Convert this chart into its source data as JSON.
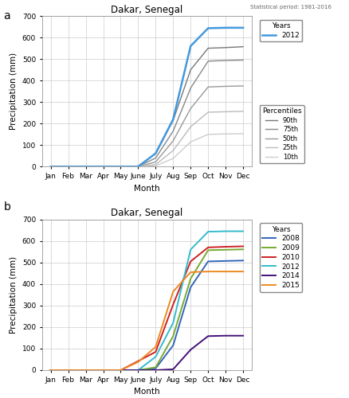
{
  "title": "Dakar, Senegal",
  "xlabel": "Month",
  "ylabel": "Precipitation (mm)",
  "stat_period_text": "Statistical period: 1981-2016",
  "ylim": [
    0,
    700
  ],
  "month_labels": [
    "Jan",
    "Feb",
    "Mar",
    "Apr",
    "May",
    "June",
    "July",
    "Aug",
    "Sep",
    "Oct",
    "Nov",
    "Dec"
  ],
  "percentile_colors": {
    "90th": "#777777",
    "75th": "#888888",
    "50th": "#999999",
    "25th": "#bbbbbb",
    "10th": "#cccccc"
  },
  "percentile_lw": 1.0,
  "p90": [
    0,
    0,
    0,
    0,
    0,
    3,
    60,
    215,
    450,
    550,
    553,
    557
  ],
  "p75": [
    0,
    0,
    0,
    0,
    0,
    1,
    40,
    165,
    365,
    490,
    493,
    495
  ],
  "p50": [
    0,
    0,
    0,
    0,
    0,
    0,
    22,
    120,
    270,
    370,
    373,
    375
  ],
  "p25": [
    0,
    0,
    0,
    0,
    0,
    0,
    10,
    75,
    185,
    253,
    255,
    257
  ],
  "p10": [
    0,
    0,
    0,
    0,
    0,
    0,
    4,
    38,
    115,
    150,
    152,
    153
  ],
  "year2012_color": "#4499dd",
  "year2012_lw": 1.8,
  "year2012": [
    0,
    0,
    0,
    0,
    0,
    0,
    62,
    220,
    560,
    643,
    645,
    645
  ],
  "panel_b_years": [
    "2008",
    "2009",
    "2010",
    "2012",
    "2014",
    "2015"
  ],
  "panel_b_colors": {
    "2008": "#3366bb",
    "2009": "#77aa33",
    "2010": "#cc2222",
    "2012": "#33bbcc",
    "2014": "#441177",
    "2015": "#ee8822"
  },
  "panel_b_lw": 1.4,
  "panel_b_data": {
    "2008": [
      0,
      0,
      0,
      0,
      0,
      0,
      8,
      115,
      385,
      505,
      507,
      509
    ],
    "2009": [
      0,
      0,
      0,
      0,
      0,
      0,
      13,
      158,
      425,
      557,
      559,
      561
    ],
    "2010": [
      0,
      0,
      0,
      0,
      0,
      42,
      85,
      305,
      505,
      570,
      573,
      575
    ],
    "2012": [
      0,
      0,
      0,
      0,
      0,
      0,
      62,
      220,
      560,
      643,
      645,
      645
    ],
    "2014": [
      0,
      0,
      0,
      0,
      0,
      0,
      0,
      4,
      95,
      158,
      160,
      160
    ],
    "2015": [
      0,
      0,
      0,
      0,
      0,
      38,
      108,
      365,
      455,
      458,
      458,
      458
    ]
  }
}
